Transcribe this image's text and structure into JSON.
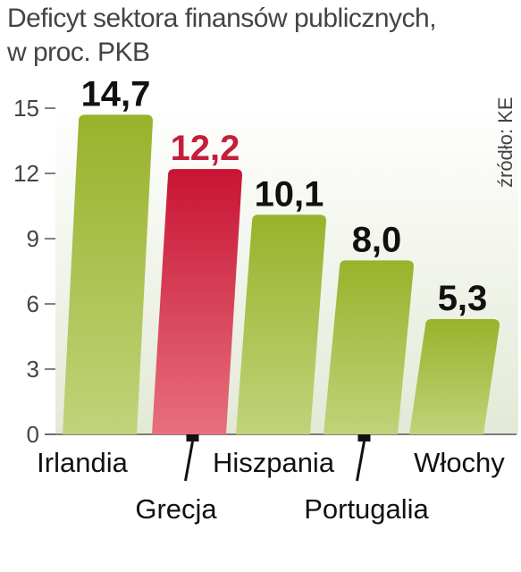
{
  "title_line1": "Deficyt sektora finansów publicznych,",
  "title_line2": "w proc. PKB",
  "source": "źródło: KE",
  "colors": {
    "bar": "#a5bd3c",
    "highlight": "#cc1f3c",
    "highlight_label": "#c41e3a",
    "label": "#111111",
    "axis": "#444444",
    "background_panel": "#e9eee0"
  },
  "chart_data": {
    "type": "bar",
    "categories": [
      "Irlandia",
      "Grecja",
      "Hiszpania",
      "Portugalia",
      "Włochy"
    ],
    "values": [
      14.7,
      12.2,
      10.1,
      8.0,
      5.3
    ],
    "value_labels": [
      "14,7",
      "12,2",
      "10,1",
      "8,0",
      "5,3"
    ],
    "highlight_index": 1,
    "title": "Deficyt sektora finansów publicznych, w proc. PKB",
    "ylabel": "",
    "xlabel": "",
    "ylim": [
      0,
      15
    ],
    "yticks": [
      0,
      3,
      6,
      9,
      12,
      15
    ],
    "grid": false
  }
}
